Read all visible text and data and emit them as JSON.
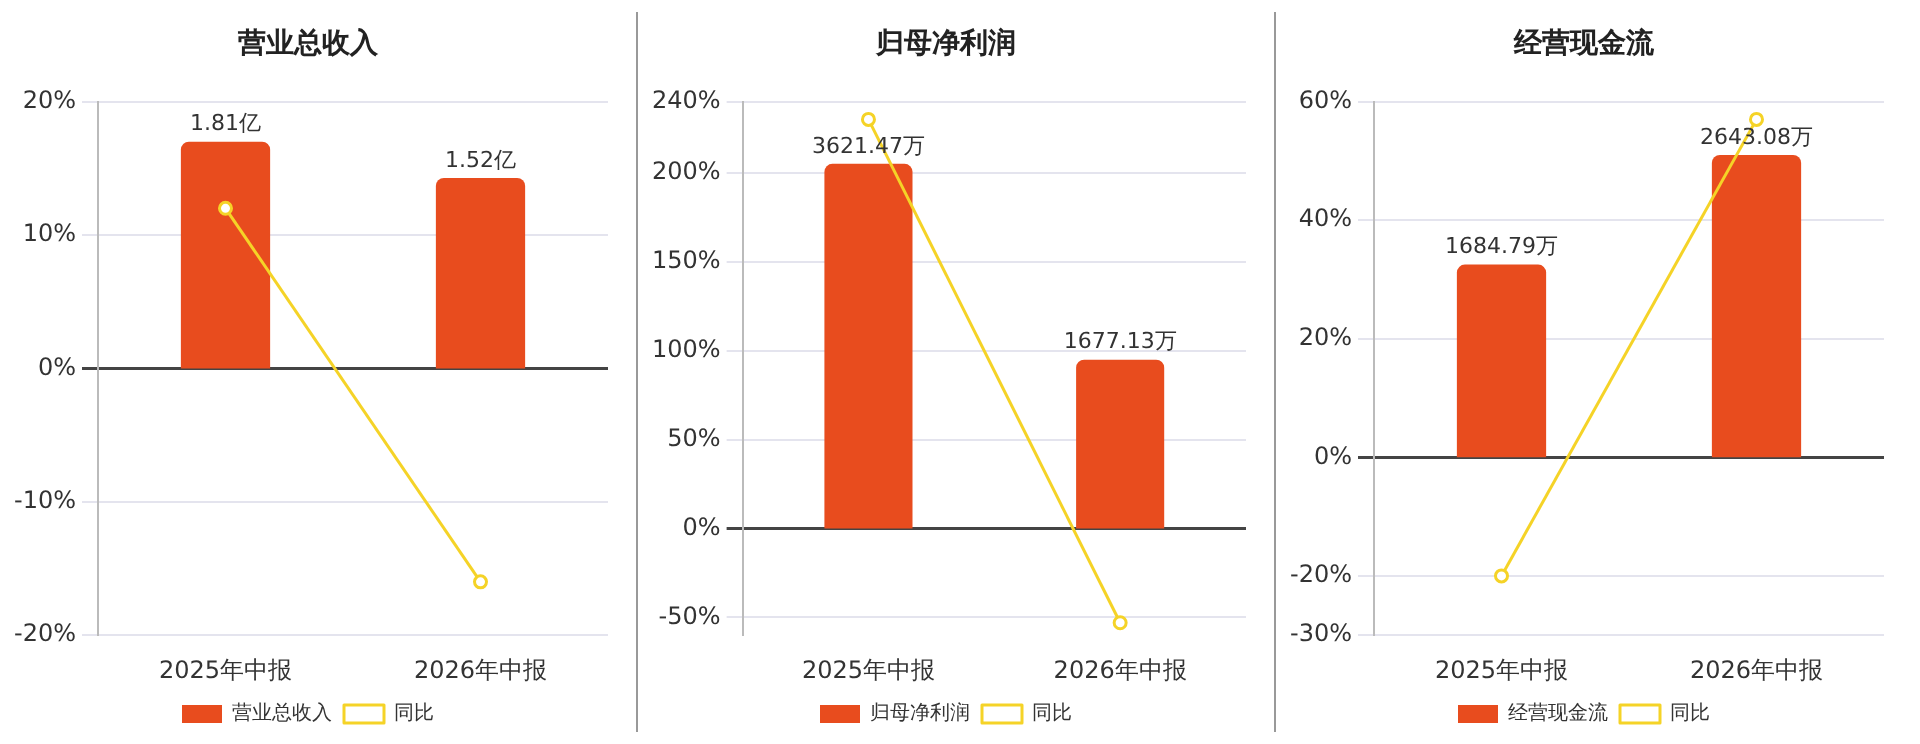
{
  "chart_data": [
    {
      "type": "bar",
      "title": "营业总收入",
      "categories": [
        "2025年中报",
        "2026年中报"
      ],
      "series": [
        {
          "name": "营业总收入",
          "axis": "y2",
          "color": "#e84c1e",
          "values": [
            1.81,
            1.52
          ],
          "value_labels": [
            "1.81亿",
            "1.52亿"
          ]
        },
        {
          "name": "同比",
          "type": "line",
          "color": "#f5d327",
          "values": [
            12,
            -16
          ]
        }
      ],
      "ylim": [
        -20,
        20
      ],
      "yticks": [
        {
          "value": -20,
          "label": "-20%"
        },
        {
          "value": -10,
          "label": "-10%"
        },
        {
          "value": 0,
          "label": "0%"
        },
        {
          "value": 10,
          "label": "10%"
        },
        {
          "value": 20,
          "label": "20%"
        }
      ],
      "y2lim": [
        -2.13,
        2.13
      ],
      "grid": "y",
      "legend": "bottom",
      "marker": "circle"
    },
    {
      "type": "bar",
      "title": "归母净利润",
      "categories": [
        "2025年中报",
        "2026年中报"
      ],
      "series": [
        {
          "name": "归母净利润",
          "axis": "y2",
          "color": "#e84c1e",
          "values": [
            3621.47,
            1677.13
          ],
          "value_labels": [
            "3621.47万",
            "1677.13万"
          ]
        },
        {
          "name": "同比",
          "type": "line",
          "color": "#f5d327",
          "values": [
            230,
            -53
          ]
        }
      ],
      "ylim": [
        -60,
        240
      ],
      "yticks": [
        {
          "value": -50,
          "label": "-50%"
        },
        {
          "value": 0,
          "label": "0%"
        },
        {
          "value": 50,
          "label": "50%"
        },
        {
          "value": 100,
          "label": "100%"
        },
        {
          "value": 150,
          "label": "150%"
        },
        {
          "value": 200,
          "label": "200%"
        },
        {
          "value": 240,
          "label": "240%"
        }
      ],
      "y2lim": [
        -1060,
        4240
      ],
      "grid": "y",
      "legend": "bottom",
      "marker": "circle"
    },
    {
      "type": "bar",
      "title": "经营现金流",
      "categories": [
        "2025年中报",
        "2026年中报"
      ],
      "series": [
        {
          "name": "经营现金流",
          "axis": "y2",
          "color": "#e84c1e",
          "values": [
            1684.79,
            2643.08
          ],
          "value_labels": [
            "1684.79万",
            "2643.08万"
          ]
        },
        {
          "name": "同比",
          "type": "line",
          "color": "#f5d327",
          "values": [
            -20,
            57
          ]
        }
      ],
      "ylim": [
        -30,
        60
      ],
      "yticks": [
        {
          "value": -30,
          "label": "-30%"
        },
        {
          "value": -20,
          "label": "-20%"
        },
        {
          "value": 0,
          "label": "0%"
        },
        {
          "value": 20,
          "label": "20%"
        },
        {
          "value": 40,
          "label": "40%"
        },
        {
          "value": 60,
          "label": "60%"
        }
      ],
      "y2lim": [
        -1555,
        3110
      ],
      "grid": "y",
      "legend": "bottom",
      "marker": "circle"
    }
  ]
}
